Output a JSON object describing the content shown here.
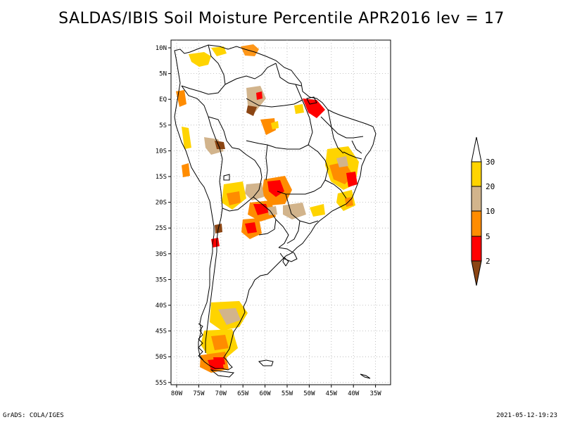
{
  "title": "SALDAS/IBIS Soil Moisture Percentile APR2016 lev = 17",
  "footer": {
    "left": "GrADS: COLA/IGES",
    "right": "2021-05-12-19:23"
  },
  "map": {
    "region": "South America",
    "lon_range": [
      -81,
      -33
    ],
    "lat_range": [
      -56,
      12
    ],
    "lon_ticks": [
      "80W",
      "75W",
      "70W",
      "65W",
      "60W",
      "55W",
      "50W",
      "45W",
      "40W",
      "35W"
    ],
    "lat_ticks": [
      "10N",
      "5N",
      "EQ",
      "5S",
      "10S",
      "15S",
      "20S",
      "25S",
      "30S",
      "35S",
      "40S",
      "45S",
      "50S",
      "55S"
    ],
    "gridlines": "dotted"
  },
  "legend": {
    "labels": [
      "30",
      "20",
      "10",
      "5",
      "2"
    ],
    "colors": {
      "above30": "#ffffff",
      "c20_30": "#ffd400",
      "c10_20": "#d2b48c",
      "c5_10": "#ff8c00",
      "c2_5": "#ff0000",
      "below2": "#8b4513"
    }
  }
}
